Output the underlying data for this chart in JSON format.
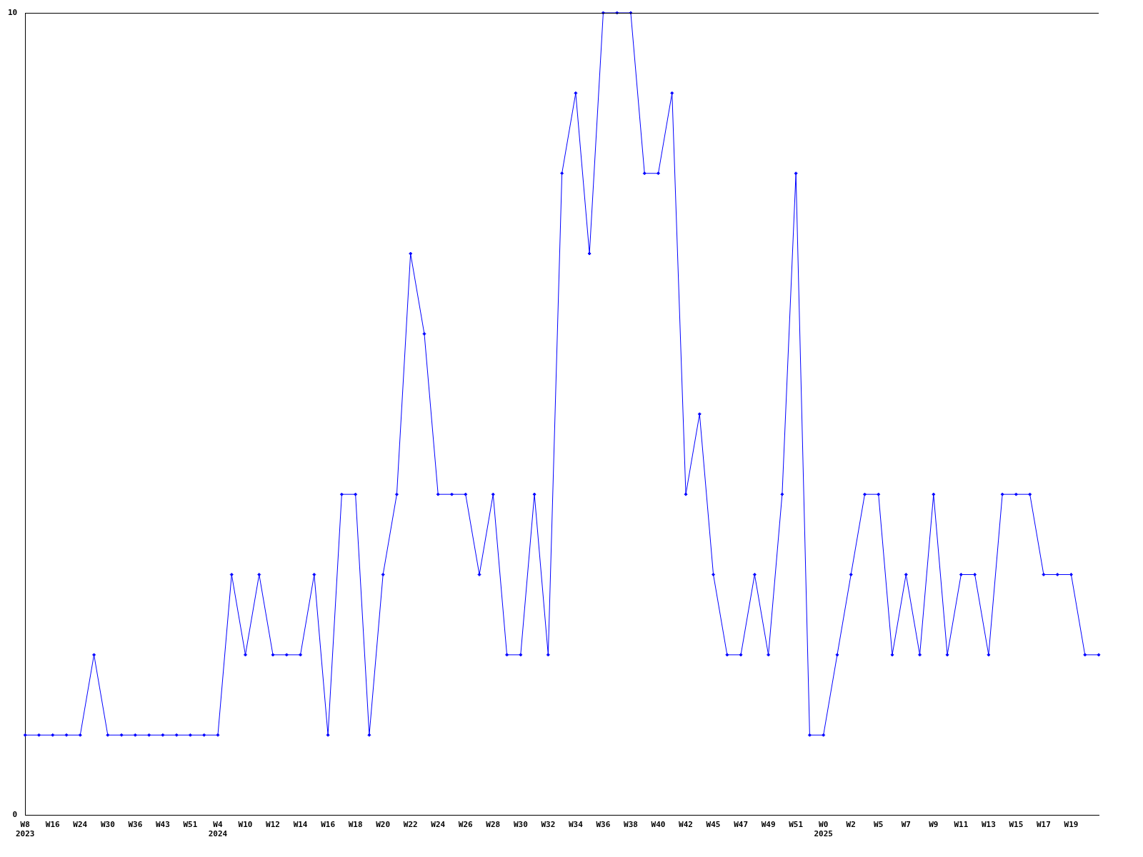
{
  "chart_data": {
    "type": "line",
    "categories": [
      "W8\n2023",
      null,
      "W16",
      null,
      "W24",
      null,
      "W30",
      null,
      "W36",
      null,
      "W43",
      null,
      "W51",
      null,
      "W4\n2024",
      null,
      "W10",
      null,
      "W12",
      null,
      "W14",
      null,
      "W16",
      null,
      "W18",
      null,
      "W20",
      null,
      "W22",
      null,
      "W24",
      null,
      "W26",
      null,
      "W28",
      null,
      "W30",
      null,
      "W32",
      null,
      "W34",
      null,
      "W36",
      null,
      "W38",
      null,
      "W40",
      null,
      "W42",
      null,
      "W45",
      null,
      "W47",
      null,
      "W49",
      null,
      "W51",
      null,
      "W0\n2025",
      null,
      "W2",
      null,
      "W5",
      null,
      "W7",
      null,
      "W9",
      null,
      "W11",
      null,
      "W13",
      null,
      "W15",
      null,
      "W17",
      null,
      "W19",
      null,
      null
    ],
    "series": [
      {
        "color": "#0000ff",
        "values": [
          1,
          1,
          1,
          1,
          1,
          2,
          1,
          1,
          1,
          1,
          1,
          1,
          1,
          1,
          1,
          3,
          2,
          3,
          2,
          2,
          2,
          3,
          1,
          4,
          4,
          1,
          3,
          4,
          7,
          6,
          4,
          4,
          4,
          3,
          4,
          2,
          2,
          4,
          2,
          8,
          9,
          7,
          10,
          10,
          10,
          8,
          8,
          9,
          4,
          5,
          3,
          2,
          2,
          3,
          2,
          4,
          8,
          1,
          1,
          2,
          3,
          4,
          4,
          2,
          3,
          2,
          4,
          2,
          3,
          3,
          2,
          4,
          4,
          4,
          3,
          3,
          3,
          2,
          2
        ]
      }
    ],
    "ylim": [
      0,
      10
    ],
    "yticks": [
      0,
      10
    ],
    "grid": false,
    "legend": false,
    "marker": "diamond",
    "line_style": "solid"
  }
}
